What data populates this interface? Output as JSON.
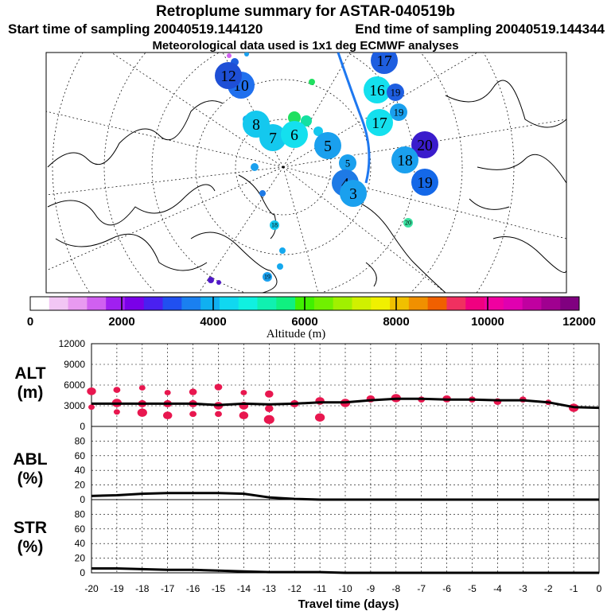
{
  "header": {
    "title": "Retroplume summary for ASTAR-040519b",
    "start_time": "Start time of sampling 20040519.144120",
    "end_time": "End time of sampling 20040519.144344",
    "met_data": "Meteorological data used is 1x1 deg ECMWF analyses"
  },
  "map": {
    "circles": [
      {
        "label": "17",
        "size": "large",
        "color": "#1e5ee0"
      },
      {
        "label": "16",
        "size": "large",
        "color": "#14e0ee"
      },
      {
        "label": "20",
        "size": "large",
        "color": "#3a1ccc"
      },
      {
        "label": "18",
        "size": "large",
        "color": "#1aa0ee"
      },
      {
        "label": "19",
        "size": "large",
        "color": "#1468e8"
      },
      {
        "label": "19",
        "size": "medium",
        "color": "#1e5ee0"
      },
      {
        "label": "19",
        "size": "medium",
        "color": "#1aa0ee"
      },
      {
        "label": "17",
        "size": "large",
        "color": "#14e0ee"
      },
      {
        "label": "10",
        "size": "large",
        "color": "#2070ee"
      },
      {
        "label": "12",
        "size": "large",
        "color": "#1e4fd6"
      },
      {
        "label": "8",
        "size": "large",
        "color": "#14c8ee"
      },
      {
        "label": "7",
        "size": "large",
        "color": "#14c8ee"
      },
      {
        "label": "6",
        "size": "large",
        "color": "#14e0ee"
      },
      {
        "label": "5",
        "size": "large",
        "color": "#1aa0ee"
      },
      {
        "label": "5",
        "size": "medium",
        "color": "#1aa0ee"
      },
      {
        "label": "4",
        "size": "large",
        "color": "#1e7ae6"
      },
      {
        "label": "3",
        "size": "large",
        "color": "#1aa0ee"
      },
      {
        "label": "20",
        "size": "small",
        "color": "#3ae0a0"
      },
      {
        "label": "18",
        "size": "small",
        "color": "#14c8ee"
      },
      {
        "label": "19",
        "size": "small",
        "color": "#1aa0ee"
      }
    ]
  },
  "colorbar": {
    "ticks": [
      "0",
      "2000",
      "4000",
      "6000",
      "8000",
      "10000",
      "12000"
    ],
    "label": "Altitude (m)",
    "colors": [
      "#ffffff",
      "#f2c6f4",
      "#e89af0",
      "#d060f0",
      "#a020f0",
      "#7a00e8",
      "#4a20f0",
      "#2050f0",
      "#1a80f0",
      "#10b0f0",
      "#10d8f0",
      "#10f0e0",
      "#10f0b0",
      "#10f080",
      "#40f000",
      "#70f000",
      "#a0f000",
      "#d0f000",
      "#f0f000",
      "#f0c000",
      "#f09000",
      "#f06000",
      "#f03060",
      "#f00080",
      "#f000a0",
      "#e000b0",
      "#c000a0",
      "#a00090",
      "#800080"
    ]
  },
  "chart_data": [
    {
      "type": "line",
      "title": "ALT",
      "ylabel": "ALT (m)",
      "xlabel": "Travel time (days)",
      "x": [
        -20,
        -19,
        -18,
        -17,
        -16,
        -15,
        -14,
        -13,
        -12,
        -11,
        -10,
        -9,
        -8,
        -7,
        -6,
        -5,
        -4,
        -3,
        -2,
        -1,
        0
      ],
      "values": [
        3300,
        3300,
        3300,
        3300,
        3300,
        3100,
        3300,
        3200,
        3300,
        3500,
        3500,
        3800,
        4000,
        4000,
        3900,
        3900,
        3800,
        3800,
        3500,
        2800,
        2700
      ],
      "ylim": [
        0,
        12000
      ],
      "yticks": [
        "0",
        "3000",
        "6000",
        "9000",
        "12000"
      ],
      "scatter_points": [
        {
          "x": -20,
          "y": 5100
        },
        {
          "x": -20,
          "y": 2800
        },
        {
          "x": -19,
          "y": 5300
        },
        {
          "x": -19,
          "y": 3400
        },
        {
          "x": -19,
          "y": 2100
        },
        {
          "x": -18,
          "y": 5600
        },
        {
          "x": -18,
          "y": 3300
        },
        {
          "x": -18,
          "y": 2000
        },
        {
          "x": -17,
          "y": 4900
        },
        {
          "x": -17,
          "y": 3300
        },
        {
          "x": -17,
          "y": 1600
        },
        {
          "x": -16,
          "y": 5000
        },
        {
          "x": -16,
          "y": 3300
        },
        {
          "x": -16,
          "y": 1800
        },
        {
          "x": -15,
          "y": 5700
        },
        {
          "x": -15,
          "y": 3000
        },
        {
          "x": -15,
          "y": 1800
        },
        {
          "x": -14,
          "y": 4900
        },
        {
          "x": -14,
          "y": 3000
        },
        {
          "x": -14,
          "y": 1600
        },
        {
          "x": -13,
          "y": 4700
        },
        {
          "x": -13,
          "y": 2600
        },
        {
          "x": -13,
          "y": 1000
        },
        {
          "x": -12,
          "y": 3300
        },
        {
          "x": -11,
          "y": 3700
        },
        {
          "x": -11,
          "y": 1300
        },
        {
          "x": -10,
          "y": 3400
        },
        {
          "x": -9,
          "y": 4000
        },
        {
          "x": -8,
          "y": 4100
        },
        {
          "x": -7,
          "y": 3900
        },
        {
          "x": -6,
          "y": 4000
        },
        {
          "x": -5,
          "y": 3900
        },
        {
          "x": -4,
          "y": 3600
        },
        {
          "x": -3,
          "y": 3900
        },
        {
          "x": -2,
          "y": 3500
        },
        {
          "x": -1,
          "y": 2700
        }
      ]
    },
    {
      "type": "line",
      "title": "ABL",
      "ylabel": "ABL (%)",
      "x": [
        -20,
        -19,
        -18,
        -17,
        -16,
        -15,
        -14,
        -13,
        -12,
        -11,
        -10,
        -9,
        -8,
        -7,
        -6,
        -5,
        -4,
        -3,
        -2,
        -1,
        0
      ],
      "values": [
        5,
        6,
        8,
        9,
        9,
        9,
        8,
        3,
        1,
        0,
        0,
        0,
        0,
        0,
        0,
        0,
        0,
        0,
        0,
        0,
        0
      ],
      "ylim": [
        0,
        100
      ],
      "yticks": [
        "0",
        "20",
        "40",
        "60",
        "80"
      ]
    },
    {
      "type": "line",
      "title": "STR",
      "ylabel": "STR (%)",
      "x": [
        -20,
        -19,
        -18,
        -17,
        -16,
        -15,
        -14,
        -13,
        -12,
        -11,
        -10,
        -9,
        -8,
        -7,
        -6,
        -5,
        -4,
        -3,
        -2,
        -1,
        0
      ],
      "values": [
        6,
        6,
        5,
        4,
        4,
        3,
        2,
        1,
        1,
        1,
        0,
        0,
        0,
        0,
        0,
        0,
        0,
        0,
        0,
        0,
        0
      ],
      "ylim": [
        0,
        100
      ],
      "yticks": [
        "0",
        "20",
        "40",
        "60",
        "80"
      ]
    }
  ],
  "xaxis": {
    "ticks": [
      "-20",
      "-19",
      "-18",
      "-17",
      "-16",
      "-15",
      "-14",
      "-13",
      "-12",
      "-11",
      "-10",
      "-9",
      "-8",
      "-7",
      "-6",
      "-5",
      "-4",
      "-3",
      "-2",
      "-1",
      "0"
    ],
    "label": "Travel time (days)"
  },
  "panels": {
    "alt_label": "ALT",
    "alt_unit": "(m)",
    "abl_label": "ABL",
    "abl_unit": "(%)",
    "str_label": "STR",
    "str_unit": "(%)"
  }
}
